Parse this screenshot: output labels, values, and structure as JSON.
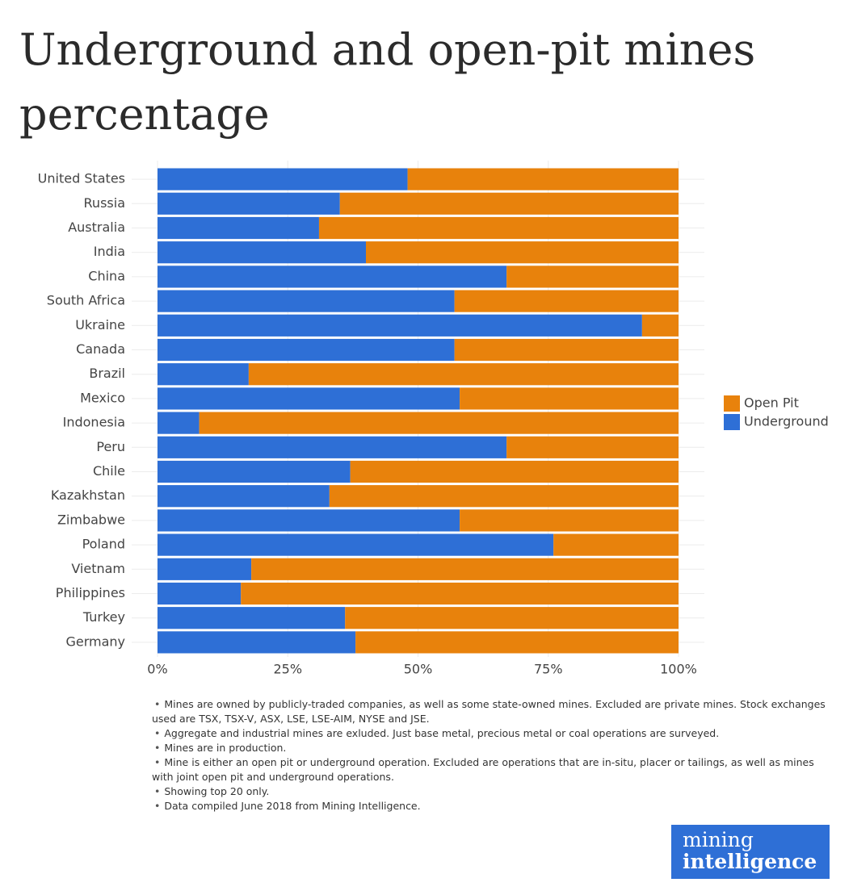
{
  "chart_data": {
    "type": "stacked-bar-horizontal",
    "title": "Underground and open-pit mines percentage",
    "categories": [
      "United States",
      "Russia",
      "Australia",
      "India",
      "China",
      "South Africa",
      "Ukraine",
      "Canada",
      "Brazil",
      "Mexico",
      "Indonesia",
      "Peru",
      "Chile",
      "Kazakhstan",
      "Zimbabwe",
      "Poland",
      "Vietnam",
      "Philippines",
      "Turkey",
      "Germany"
    ],
    "series": [
      {
        "name": "Underground",
        "color": "#2e6fd6",
        "values": [
          48,
          35,
          31,
          40,
          67,
          57,
          93,
          57,
          17.5,
          58,
          8,
          67,
          37,
          33,
          58,
          76,
          18,
          16,
          36,
          38
        ]
      },
      {
        "name": "Open Pit",
        "color": "#e8820c",
        "values": [
          52,
          65,
          69,
          60,
          33,
          43,
          7,
          43,
          82.5,
          42,
          92,
          33,
          63,
          67,
          42,
          24,
          82,
          84,
          64,
          62
        ]
      }
    ],
    "xlim": [
      0,
      100
    ],
    "xticks": [
      {
        "value": 0,
        "label": "0%"
      },
      {
        "value": 25,
        "label": "25%"
      },
      {
        "value": 50,
        "label": "50%"
      },
      {
        "value": 75,
        "label": "75%"
      },
      {
        "value": 100,
        "label": "100%"
      }
    ],
    "grid": true,
    "legend": "right",
    "notes": [
      "Mines are owned by publicly-traded companies, as well as some state-owned mines. Excluded are private mines. Stock exchanges used are TSX, TSX-V, ASX, LSE, LSE-AIM, NYSE and JSE.",
      "Aggregate and industrial mines are exluded. Just base metal, precious metal or coal operations are surveyed.",
      "Mines are in production.",
      "Mine is either an open pit or underground operation. Excluded are operations that are in-situ, placer or tailings, as well as mines with joint open pit and underground operations.",
      "Showing top 20 only.",
      "Data compiled June 2018 from Mining Intelligence."
    ],
    "logo": [
      "mining",
      "intelligence"
    ]
  }
}
